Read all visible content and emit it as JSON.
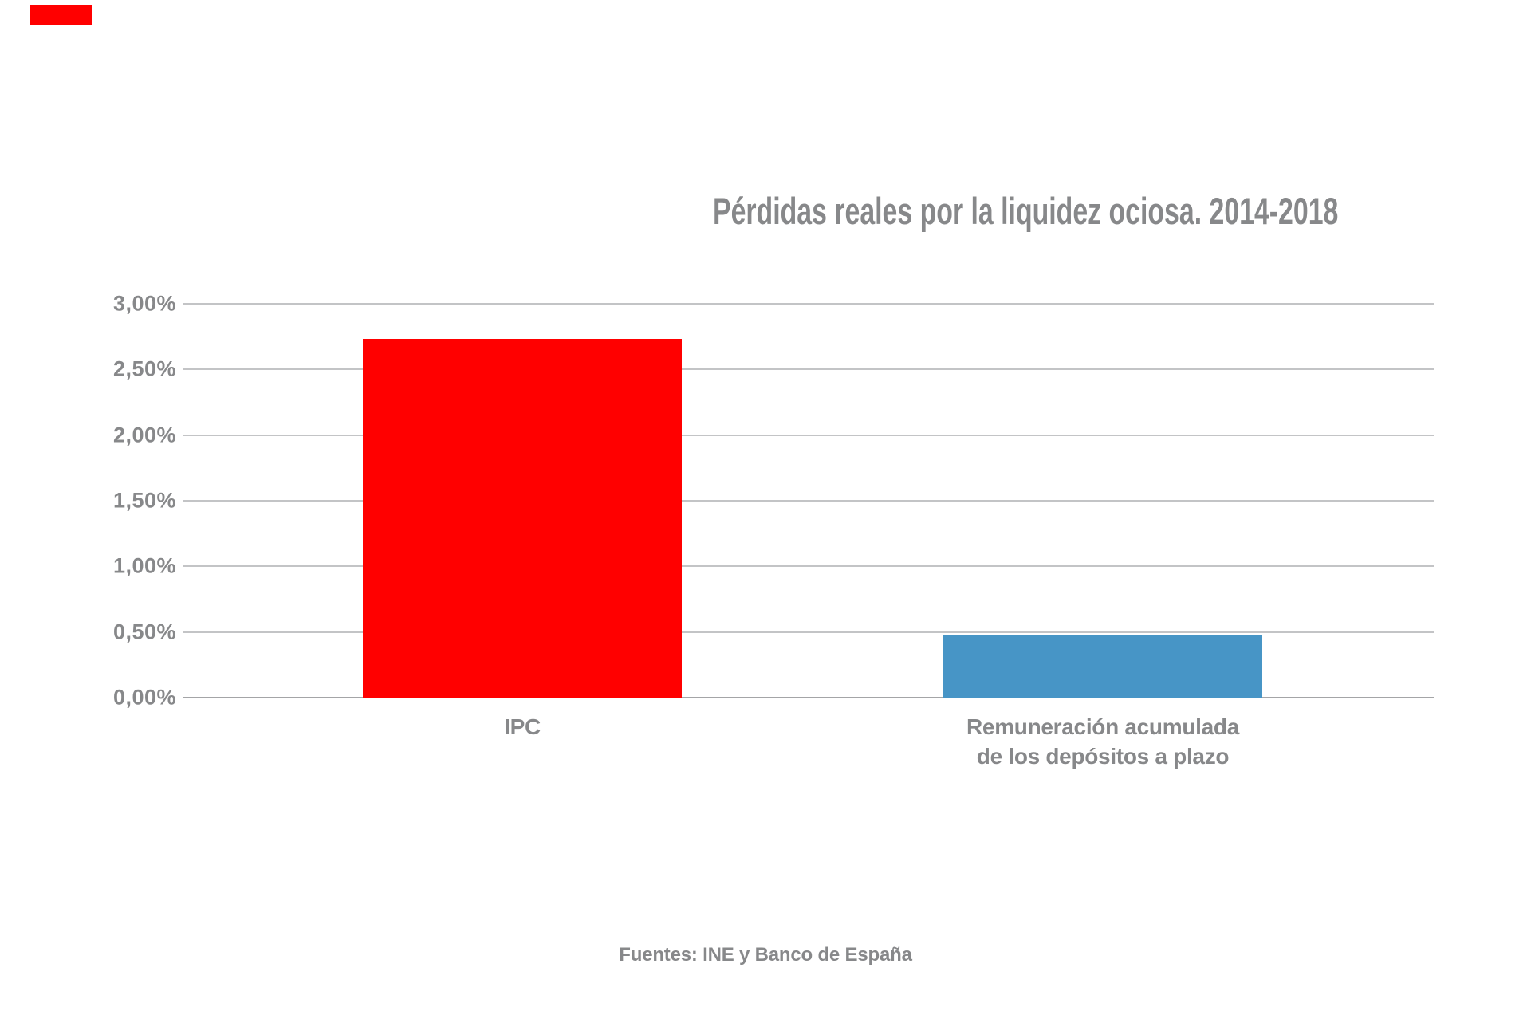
{
  "page": {
    "background": "#ffffff",
    "text_color": "#87888a",
    "corner_mark_color": "#ff0000"
  },
  "chart_data": {
    "type": "bar",
    "title": "Pérdidas reales por la liquidez ociosa. 2014-2018",
    "source_note": "Fuentes: INE y Banco de España",
    "categories": [
      "IPC",
      "Remuneración acumulada de los depósitos a plazo"
    ],
    "category_lines": [
      [
        "IPC"
      ],
      [
        "Remuneración acumulada",
        "de los depósitos a plazo"
      ]
    ],
    "values": [
      2.73,
      0.48
    ],
    "bar_colors": [
      "#ff0000",
      "#4795c6"
    ],
    "xlabel": "",
    "ylabel": "",
    "ylim": [
      0,
      3
    ],
    "yticks": [
      {
        "value": 3.0,
        "label": "3,00%"
      },
      {
        "value": 2.5,
        "label": "2,50%"
      },
      {
        "value": 2.0,
        "label": "2,00%"
      },
      {
        "value": 1.5,
        "label": "1,50%"
      },
      {
        "value": 1.0,
        "label": "1,00%"
      },
      {
        "value": 0.5,
        "label": "0,50%"
      },
      {
        "value": 0.0,
        "label": "0,00%"
      }
    ],
    "grid": true,
    "legend": false,
    "gridline_color": "#c3c4c6",
    "baseline_color": "#a4a5a7"
  }
}
